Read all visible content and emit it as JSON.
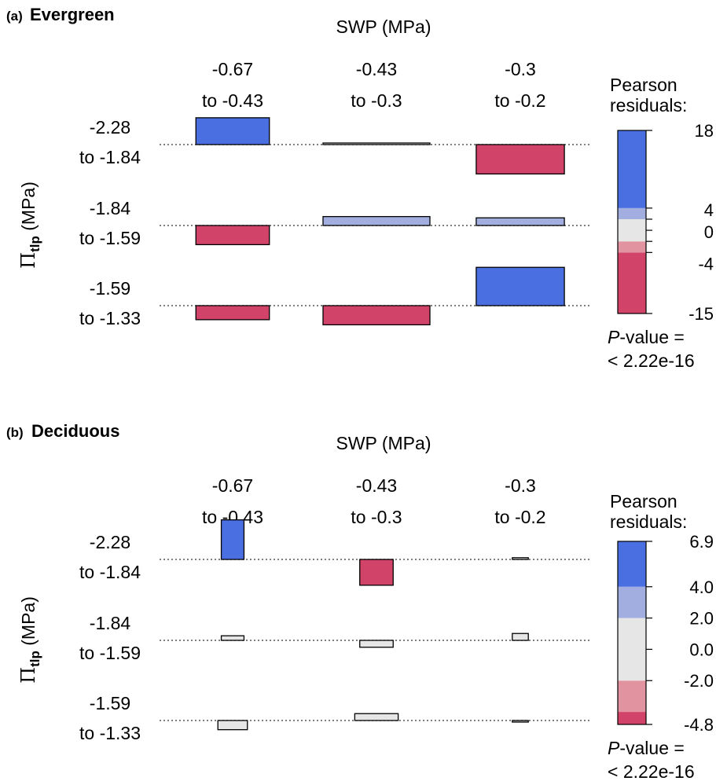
{
  "chart_data": [
    {
      "type": "association",
      "panel_letter": "(a)",
      "group": "Evergreen",
      "xlabel": "SWP (MPa)",
      "ylabel": {
        "main": "Π",
        "sub": "tlp",
        "rest": " (MPa)"
      },
      "col_categories": [
        {
          "line1": "-0.67",
          "line2": "to -0.43"
        },
        {
          "line1": "-0.43",
          "line2": "to -0.3"
        },
        {
          "line1": "-0.3",
          "line2": "to -0.2"
        }
      ],
      "row_categories": [
        {
          "line1": "-2.28",
          "line2": "to -1.84"
        },
        {
          "line1": "-1.84",
          "line2": "to -1.59"
        },
        {
          "line1": "-1.59",
          "line2": "to -1.33"
        }
      ],
      "residuals": [
        [
          10.5,
          0.5,
          -11.5
        ],
        [
          -7.5,
          3.5,
          3.0
        ],
        [
          -5.5,
          -7.5,
          15.0
        ]
      ],
      "expected_relative": [
        0.55,
        0.8,
        0.66
      ],
      "legend": {
        "title_line1": "Pearson",
        "title_line2": "residuals:",
        "min": -15,
        "max": 18,
        "ticks": [
          "18",
          "4",
          "0",
          "-4",
          "-15"
        ],
        "tick_values": [
          18,
          4,
          0,
          -4,
          -15
        ],
        "minor_ticks": [
          2,
          -2
        ],
        "breaks": [
          -15,
          -4,
          -2,
          2,
          4,
          18
        ]
      },
      "pvalue": {
        "label": "P",
        "line1_rest": "-value =",
        "line2": "< 2.22e-16"
      }
    },
    {
      "type": "association",
      "panel_letter": "(b)",
      "group": "Deciduous",
      "xlabel": "SWP (MPa)",
      "ylabel": {
        "main": "Π",
        "sub": "tlp",
        "rest": " (MPa)"
      },
      "col_categories": [
        {
          "line1": "-0.67",
          "line2": "to -0.43"
        },
        {
          "line1": "-0.43",
          "line2": "to -0.3"
        },
        {
          "line1": "-0.3",
          "line2": "to -0.2"
        }
      ],
      "row_categories": [
        {
          "line1": "-2.28",
          "line2": "to -1.84"
        },
        {
          "line1": "-1.84",
          "line2": "to -1.59"
        },
        {
          "line1": "-1.59",
          "line2": "to -1.33"
        }
      ],
      "residuals": [
        [
          6.9,
          -4.5,
          0.3
        ],
        [
          0.8,
          -1.2,
          1.2
        ],
        [
          -1.6,
          1.2,
          -0.2
        ]
      ],
      "expected_relative": [
        0.17,
        0.25,
        0.12
      ],
      "legend": {
        "title_line1": "Pearson",
        "title_line2": "residuals:",
        "min": -4.8,
        "max": 6.9,
        "ticks": [
          "6.9",
          "4.0",
          "2.0",
          "0.0",
          "-2.0",
          "-4.8"
        ],
        "tick_values": [
          6.9,
          4.0,
          2.0,
          0.0,
          -2.0,
          -4.8
        ],
        "minor_ticks": [],
        "breaks": [
          -4.8,
          -4,
          -2,
          2,
          4,
          6.9
        ]
      },
      "pvalue": {
        "label": "P",
        "line1_rest": "-value =",
        "line2": "< 2.22e-16"
      }
    }
  ],
  "colors": {
    "positive_strong": "#4a6fe0",
    "positive_weak": "#a3aee0",
    "neutral": "#e6e6e6",
    "negative_weak": "#e1939f",
    "negative_strong": "#d2436a",
    "baseline": "#555555",
    "outline": "#000000"
  }
}
